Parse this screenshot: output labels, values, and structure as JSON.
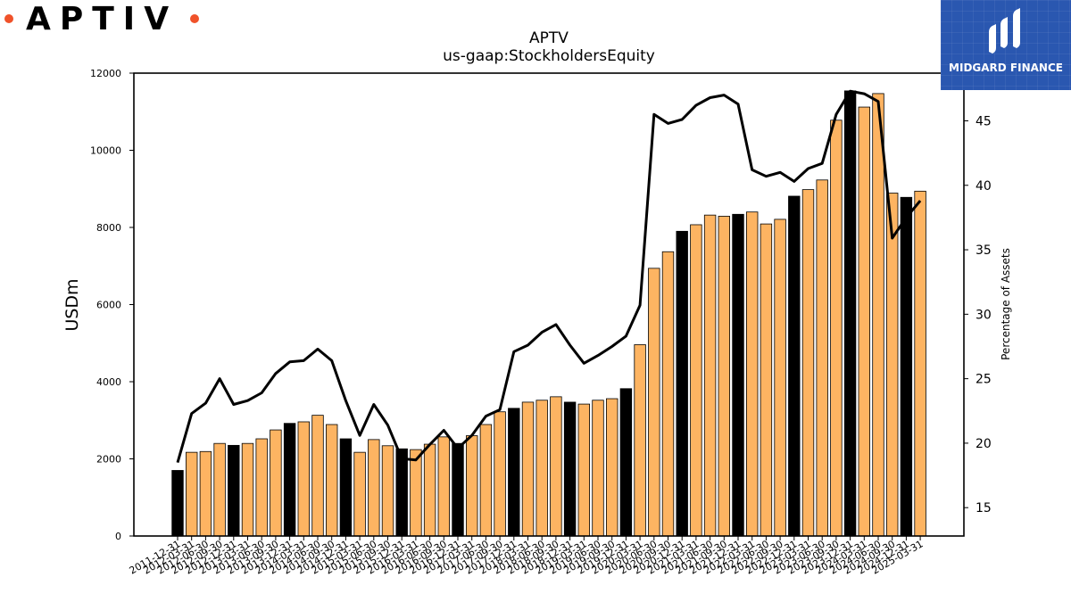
{
  "brand": {
    "logo_text": "APTIV",
    "accent_color": "#f0522a"
  },
  "watermark": {
    "text": "MIDGARD FINANCE",
    "background": "#2a57b0"
  },
  "chart_data": {
    "type": "bar",
    "title": "APTV",
    "subtitle": "us-gaap:StockholdersEquity",
    "ylabel": "USDm",
    "ylabel_right": "Percentage of Assets",
    "ylim": [
      0,
      12000
    ],
    "yticks": [
      0,
      2000,
      4000,
      6000,
      8000,
      10000,
      12000
    ],
    "ylim_right": [
      12.8,
      48.7
    ],
    "yticks_right": [
      15,
      20,
      25,
      30,
      35,
      40,
      45
    ],
    "categories": [
      "2011-12-31",
      "2012-03-31",
      "2012-06-30",
      "2012-09-30",
      "2012-12-31",
      "2013-03-31",
      "2013-06-30",
      "2013-09-30",
      "2013-12-31",
      "2014-03-31",
      "2014-06-30",
      "2014-09-30",
      "2014-12-31",
      "2015-03-31",
      "2015-06-30",
      "2015-09-30",
      "2015-12-31",
      "2016-03-31",
      "2016-06-30",
      "2016-09-30",
      "2016-12-31",
      "2017-03-31",
      "2017-06-30",
      "2017-09-30",
      "2017-12-31",
      "2018-03-31",
      "2018-06-30",
      "2018-09-30",
      "2018-12-31",
      "2019-03-31",
      "2019-06-30",
      "2019-09-30",
      "2019-12-31",
      "2020-03-31",
      "2020-06-30",
      "2020-09-30",
      "2020-12-31",
      "2021-03-31",
      "2021-06-30",
      "2021-09-30",
      "2021-12-31",
      "2022-03-31",
      "2022-06-30",
      "2022-09-30",
      "2022-12-31",
      "2023-03-31",
      "2023-06-30",
      "2023-09-30",
      "2023-12-31",
      "2024-03-31",
      "2024-06-30",
      "2024-09-30",
      "2024-12-31",
      "2025-03-31"
    ],
    "series": [
      {
        "name": "",
        "type": "bar",
        "values": [
          1700,
          2170,
          2190,
          2400,
          2350,
          2400,
          2520,
          2750,
          2920,
          2960,
          3130,
          2890,
          2520,
          2170,
          2500,
          2340,
          2260,
          2240,
          2380,
          2570,
          2400,
          2600,
          2890,
          3220,
          3310,
          3470,
          3520,
          3610,
          3470,
          3420,
          3520,
          3560,
          3820,
          4960,
          6940,
          7370,
          7900,
          8070,
          8320,
          8290,
          8340,
          8400,
          8090,
          8210,
          8810,
          8980,
          9230,
          10780,
          11540,
          11120,
          11470,
          8890,
          8780,
          8940
        ],
        "fill_default": "#fdb462",
        "fill_year_end": "#000000"
      },
      {
        "name": "",
        "type": "line",
        "axis": "right",
        "values": [
          18.5,
          22.3,
          23.1,
          25.0,
          23.0,
          23.3,
          23.9,
          25.4,
          26.3,
          26.4,
          27.3,
          26.4,
          23.3,
          20.6,
          23.0,
          21.4,
          18.8,
          18.7,
          19.9,
          21.0,
          19.6,
          20.6,
          22.1,
          22.6,
          27.1,
          27.6,
          28.6,
          29.2,
          27.6,
          26.2,
          26.8,
          27.5,
          28.3,
          30.7,
          45.5,
          44.8,
          45.1,
          46.2,
          46.8,
          47.0,
          46.3,
          41.2,
          40.7,
          41.0,
          40.3,
          41.3,
          41.7,
          45.5,
          47.3,
          47.1,
          46.5,
          35.9,
          37.5,
          38.8
        ],
        "color": "#000000"
      }
    ],
    "grid": false,
    "legend": "none"
  }
}
